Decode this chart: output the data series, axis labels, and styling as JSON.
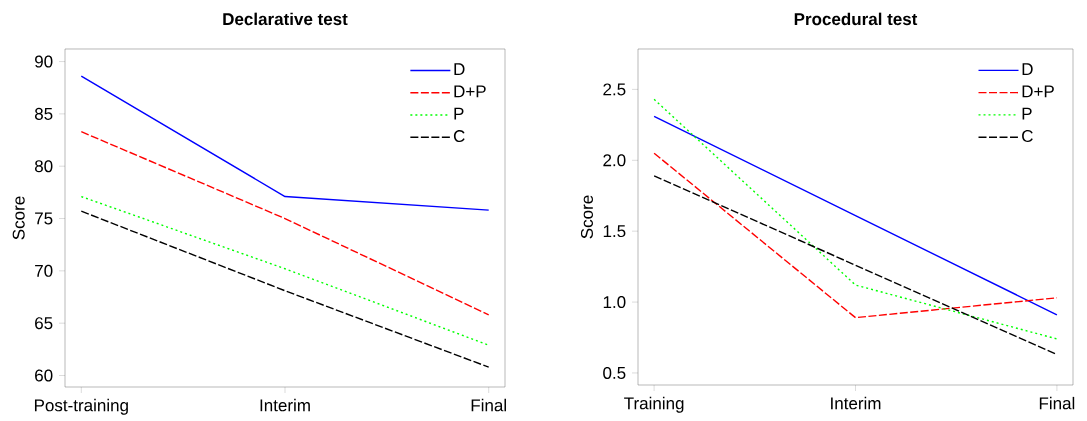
{
  "chart_data": [
    {
      "type": "line",
      "title": "Declarative test",
      "ylabel": "Score",
      "categories": [
        "Post-training",
        "Interim",
        "Final"
      ],
      "ylim": [
        58.9,
        91.2
      ],
      "yticks": [
        60,
        65,
        70,
        75,
        80,
        85,
        90
      ],
      "legend": "top right",
      "series": [
        {
          "name": "D",
          "color": "#0000ff",
          "line_style": "solid",
          "values": [
            88.6,
            77.1,
            75.8
          ]
        },
        {
          "name": "D+P",
          "color": "#ff0000",
          "line_style": "dashed",
          "values": [
            83.3,
            75.0,
            65.8
          ]
        },
        {
          "name": "P",
          "color": "#00ff00",
          "line_style": "dotted",
          "values": [
            77.1,
            70.2,
            62.9
          ]
        },
        {
          "name": "C",
          "color": "#000000",
          "line_style": "dashed",
          "values": [
            75.7,
            68.1,
            60.8
          ]
        }
      ]
    },
    {
      "type": "line",
      "title": "Procedural test",
      "ylabel": "Score",
      "categories": [
        "Training",
        "Interim",
        "Final"
      ],
      "ylim": [
        0.415,
        2.785
      ],
      "yticks": [
        {
          "value": 0.5,
          "label": "0.5"
        },
        {
          "value": 1.0,
          "label": "1.0"
        },
        {
          "value": 1.5,
          "label": "1.5"
        },
        {
          "value": 2.0,
          "label": "2.0"
        },
        {
          "value": 2.5,
          "label": "2.5"
        }
      ],
      "legend": "top right",
      "series": [
        {
          "name": "D",
          "color": "#0000ff",
          "line_style": "solid",
          "values": [
            2.31,
            1.61,
            0.91
          ]
        },
        {
          "name": "D+P",
          "color": "#ff0000",
          "line_style": "dashed",
          "values": [
            2.05,
            0.89,
            1.03
          ]
        },
        {
          "name": "P",
          "color": "#00ff00",
          "line_style": "dotted",
          "values": [
            2.43,
            1.12,
            0.74
          ]
        },
        {
          "name": "C",
          "color": "#000000",
          "line_style": "dashed",
          "values": [
            1.89,
            1.26,
            0.63
          ]
        }
      ]
    }
  ]
}
